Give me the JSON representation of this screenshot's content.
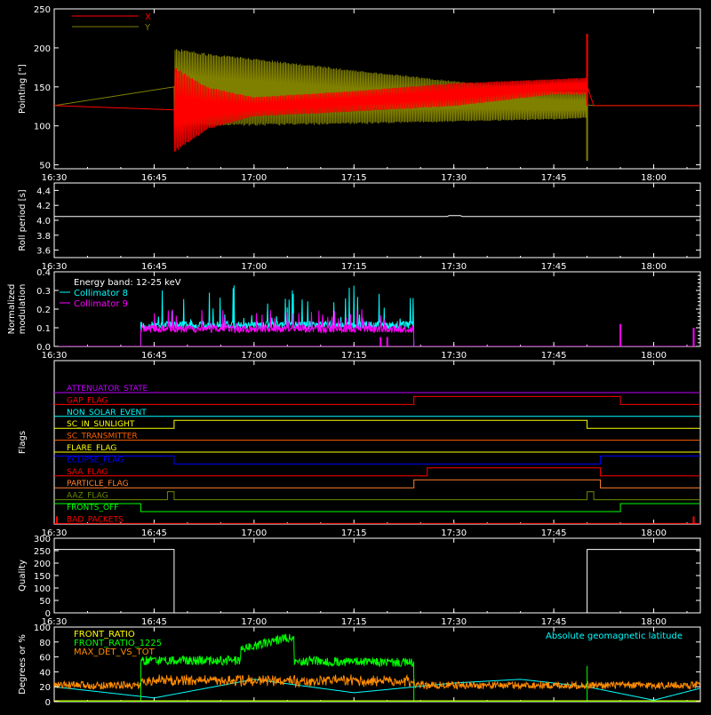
{
  "colors": {
    "background": "#000000",
    "axis": "#ffffff",
    "red": "#ff0000",
    "olive": "#808000",
    "cyan": "#00ffff",
    "magenta": "#ff00ff",
    "green": "#00ff00",
    "yellow": "#ffff00",
    "orange": "#ff8c00",
    "blue": "#0000ff",
    "attenuator": "#c000ff",
    "sc_transmitter": "#ff6000",
    "particle": "#ff8030",
    "aaz": "#6a8a00"
  },
  "time_axis": {
    "range": [
      "16:30",
      "18:07"
    ],
    "tick_labels": [
      "16:30",
      "16:45",
      "17:00",
      "17:15",
      "17:30",
      "17:45",
      "18:00"
    ]
  },
  "chart_data": [
    {
      "id": "pointing",
      "type": "line",
      "ylabel": "Pointing [\"]",
      "ylim": [
        45,
        250
      ],
      "yticks": [
        "50",
        "100",
        "150",
        "200",
        "250"
      ],
      "legend": [
        "X",
        "Y"
      ],
      "legend_placement": "top-left",
      "series": [
        {
          "name": "X",
          "color": "red",
          "x": [
            "16:30",
            "16:48",
            "16:53",
            "17:00",
            "17:15",
            "17:30",
            "17:45",
            "17:50",
            "17:51",
            "18:07"
          ],
          "upper": [
            126,
            176,
            150,
            137,
            145,
            155,
            160,
            162,
            126,
            126
          ],
          "lower": [
            126,
            65,
            95,
            112,
            118,
            125,
            140,
            140,
            126,
            126
          ],
          "spike": {
            "x": "17:50",
            "y": 218
          }
        },
        {
          "name": "Y",
          "color": "olive",
          "x": [
            "16:30",
            "16:48",
            "16:53",
            "17:00",
            "17:15",
            "17:30",
            "17:45",
            "17:50",
            "17:51",
            "18:07"
          ],
          "upper": [
            126,
            200,
            193,
            187,
            172,
            158,
            145,
            144,
            126,
            126
          ],
          "lower": [
            126,
            100,
            100,
            100,
            102,
            105,
            108,
            110,
            126,
            126
          ],
          "spike": {
            "x": "17:50",
            "y": 55
          }
        }
      ]
    },
    {
      "id": "roll",
      "type": "line",
      "ylabel": "Roll period [s]",
      "ylim": [
        3.5,
        4.5
      ],
      "yticks": [
        "3.6",
        "3.8",
        "4.0",
        "4.2",
        "4.4"
      ],
      "series": [
        {
          "color": "axis",
          "x": [
            "16:30",
            "18:07"
          ],
          "y": [
            4.05,
            4.05
          ]
        }
      ]
    },
    {
      "id": "modulation",
      "type": "line",
      "ylabel": [
        "Normalized",
        "modulation"
      ],
      "ylim": [
        0,
        0.4
      ],
      "yticks": [
        "0.0",
        "0.1",
        "0.2",
        "0.3",
        "0.4"
      ],
      "legend": [
        "Energy band: 12-25 keV",
        "Collimator 8",
        "Collimator 9"
      ],
      "legend_placement": "top-left",
      "data_range": [
        "16:43",
        "17:24"
      ],
      "series": [
        {
          "name": "Collimator 8",
          "color": "cyan",
          "x": [
            "16:43",
            "17:24"
          ],
          "baseline": 0.11,
          "max": 0.33
        },
        {
          "name": "Collimator 9",
          "color": "magenta",
          "x": [
            "16:43",
            "17:24"
          ],
          "baseline": 0.09,
          "max": 0.2
        }
      ]
    },
    {
      "id": "flags",
      "type": "line",
      "ylabel": "Flags",
      "rows": [
        {
          "name": "ATTENUATOR_STATE",
          "color": "attenuator",
          "segments": [
            [
              "16:30",
              "18:07",
              0
            ]
          ]
        },
        {
          "name": "GAP_FLAG",
          "color": "red",
          "segments": [
            [
              "16:30",
              "17:24",
              0
            ],
            [
              "17:24",
              "17:55",
              1
            ],
            [
              "17:55",
              "18:07",
              0
            ]
          ]
        },
        {
          "name": "NON_SOLAR_EVENT",
          "color": "cyan",
          "segments": [
            [
              "16:30",
              "18:07",
              0
            ]
          ]
        },
        {
          "name": "SC_IN_SUNLIGHT",
          "color": "yellow",
          "segments": [
            [
              "16:30",
              "16:48",
              0
            ],
            [
              "16:48",
              "17:50",
              1
            ],
            [
              "17:50",
              "18:07",
              0
            ]
          ]
        },
        {
          "name": "SC_TRANSMITTER",
          "color": "sc_transmitter",
          "segments": [
            [
              "16:30",
              "18:07",
              0
            ]
          ]
        },
        {
          "name": "FLARE_FLAG",
          "color": "yellow",
          "segments": [
            [
              "16:30",
              "18:07",
              0
            ]
          ]
        },
        {
          "name": "ECLIPSE_FLAG",
          "color": "blue",
          "segments": [
            [
              "16:30",
              "16:48",
              1
            ],
            [
              "16:48",
              "17:52",
              0
            ],
            [
              "17:52",
              "18:07",
              1
            ]
          ]
        },
        {
          "name": "SAA_FLAG",
          "color": "red",
          "segments": [
            [
              "16:30",
              "17:26",
              0
            ],
            [
              "17:26",
              "17:52",
              1
            ],
            [
              "17:52",
              "18:07",
              0
            ]
          ]
        },
        {
          "name": "PARTICLE_FLAG",
          "color": "particle",
          "segments": [
            [
              "16:30",
              "17:24",
              0
            ],
            [
              "17:24",
              "17:52",
              1
            ],
            [
              "17:52",
              "18:07",
              0
            ]
          ]
        },
        {
          "name": "AAZ_FLAG",
          "color": "aaz",
          "segments": [
            [
              "16:30",
              "16:47",
              0
            ],
            [
              "16:47",
              "16:48",
              1
            ],
            [
              "16:48",
              "17:50",
              0
            ],
            [
              "17:50",
              "17:51",
              1
            ],
            [
              "17:51",
              "18:07",
              0
            ]
          ]
        },
        {
          "name": "FRONTS_OFF",
          "color": "green",
          "segments": [
            [
              "16:30",
              "16:43",
              1
            ],
            [
              "16:43",
              "17:55",
              0
            ],
            [
              "17:55",
              "18:07",
              1
            ]
          ]
        },
        {
          "name": "BAD_PACKETS",
          "color": "red",
          "segments": [
            [
              "16:30",
              "18:07",
              0
            ]
          ]
        }
      ]
    },
    {
      "id": "quality",
      "type": "line",
      "ylabel": "Quality",
      "ylim": [
        0,
        300
      ],
      "yticks": [
        "0",
        "50",
        "100",
        "150",
        "200",
        "250",
        "300"
      ],
      "series": [
        {
          "color": "axis",
          "x": [
            "16:30",
            "16:48",
            "16:48",
            "17:50",
            "17:50",
            "18:07"
          ],
          "y": [
            255,
            255,
            0,
            0,
            255,
            255
          ]
        }
      ]
    },
    {
      "id": "ratios",
      "type": "line",
      "ylabel": "Degrees or %",
      "ylim": [
        0,
        100
      ],
      "yticks": [
        "0",
        "20",
        "40",
        "60",
        "80",
        "100"
      ],
      "legend": [
        "FRONT_RATIO",
        "FRONT_RATIO_1225",
        "MAX_DET_VS_TOT"
      ],
      "legend_placement": "top-left",
      "annotation": "Absolute geomagnetic latitude",
      "series": [
        {
          "name": "FRONT_RATIO",
          "color": "yellow",
          "x": [
            "16:30",
            "18:07"
          ],
          "y": [
            0,
            0
          ]
        },
        {
          "name": "FRONT_RATIO_1225",
          "color": "green",
          "x": [
            "16:43",
            "16:43",
            "16:58",
            "16:58",
            "17:06",
            "17:06",
            "17:24",
            "17:24"
          ],
          "y": [
            0,
            55,
            55,
            70,
            88,
            55,
            52,
            0
          ]
        },
        {
          "name": "MAX_DET_VS_TOT",
          "color": "orange",
          "x": [
            "16:30",
            "18:07"
          ],
          "baseline": 22
        },
        {
          "name": "Absolute geomagnetic latitude",
          "color": "cyan",
          "x": [
            "16:30",
            "16:45",
            "17:00",
            "17:15",
            "17:30",
            "17:40",
            "17:50",
            "18:00",
            "18:07"
          ],
          "y": [
            20,
            5,
            30,
            12,
            25,
            30,
            20,
            2,
            18
          ]
        }
      ]
    }
  ]
}
